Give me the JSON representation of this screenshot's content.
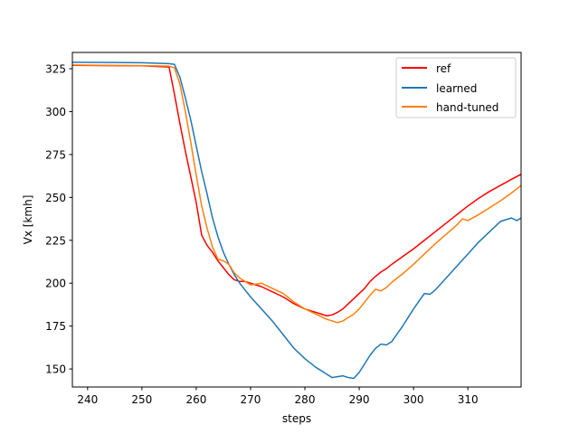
{
  "chart_data": {
    "type": "line",
    "xlabel": "steps",
    "ylabel": "Vx [kmh]",
    "xlim": [
      237.2,
      319.8
    ],
    "ylim": [
      139.5,
      334.5
    ],
    "xticks": [
      240,
      250,
      260,
      270,
      280,
      290,
      300,
      310
    ],
    "yticks": [
      150,
      175,
      200,
      225,
      250,
      275,
      300,
      325
    ],
    "grid": false,
    "legend_position": "top-right",
    "series": [
      {
        "name": "ref",
        "color": "#ff0000",
        "x": [
          237.2,
          250,
          255,
          256,
          257,
          258,
          259,
          260,
          261,
          262,
          263,
          264,
          265,
          266,
          267,
          268,
          269,
          270,
          272,
          274,
          276,
          278,
          280,
          282,
          283,
          284,
          285,
          286,
          287,
          288,
          289,
          290,
          291,
          292,
          293,
          294,
          295,
          296,
          298,
          300,
          302,
          304,
          306,
          308,
          310,
          312,
          314,
          316,
          318,
          319.8
        ],
        "y": [
          327,
          326.7,
          326,
          310,
          293,
          277,
          262,
          247,
          228,
          222,
          218,
          213,
          209,
          205,
          202,
          201,
          201,
          200,
          198,
          195,
          192,
          188,
          185,
          183,
          182,
          181,
          181.5,
          183,
          185,
          188,
          191,
          194,
          197,
          201,
          204,
          206.5,
          208.5,
          211,
          215.5,
          220,
          225,
          230,
          235,
          240,
          245,
          249.5,
          253.5,
          257,
          260.5,
          263.5
        ]
      },
      {
        "name": "learned",
        "color": "#1f77b4",
        "x": [
          237.2,
          250,
          255,
          256,
          257,
          258,
          259,
          260,
          261,
          262,
          263,
          264,
          265,
          266,
          267,
          268,
          269,
          270,
          272,
          274,
          276,
          278,
          280,
          282,
          284,
          285,
          286,
          287,
          288,
          289,
          290,
          291,
          292,
          293,
          294,
          295,
          296,
          298,
          300,
          302,
          303,
          304,
          306,
          308,
          310,
          312,
          314,
          316,
          318,
          319,
          319.8
        ],
        "y": [
          328.8,
          328.5,
          328,
          327.5,
          320,
          308,
          295,
          280,
          265,
          252,
          238,
          227,
          218,
          211,
          205,
          200,
          196,
          192,
          185,
          178,
          170,
          162,
          156,
          151,
          147,
          145,
          145.5,
          146,
          145,
          144.5,
          148,
          153,
          158,
          162,
          164.5,
          164,
          166,
          175,
          185,
          194,
          193.5,
          196,
          203,
          210,
          217,
          224,
          230,
          236,
          238,
          236.5,
          238
        ]
      },
      {
        "name": "hand-tuned",
        "color": "#ff7f0e",
        "x": [
          237.2,
          250,
          255,
          256,
          257,
          258,
          259,
          260,
          261,
          262,
          263,
          264,
          265,
          266,
          267,
          268,
          269,
          270,
          272,
          274,
          276,
          278,
          280,
          282,
          284,
          285,
          286,
          287,
          288,
          289,
          290,
          291,
          292,
          293,
          294,
          295,
          296,
          298,
          300,
          302,
          304,
          306,
          308,
          309,
          310,
          312,
          314,
          316,
          318,
          319.8
        ],
        "y": [
          327.2,
          326.8,
          326.5,
          325.5,
          316,
          300,
          282,
          263,
          245,
          232,
          221,
          214,
          213,
          211,
          206,
          203,
          201,
          199,
          200,
          197,
          194,
          189,
          185,
          182,
          179,
          178,
          177,
          178,
          180,
          182,
          185,
          189,
          193,
          196.5,
          195.5,
          197.5,
          200.5,
          205.5,
          211,
          217,
          223,
          228.5,
          234,
          237.5,
          236.5,
          240,
          244,
          248,
          252.5,
          257
        ]
      }
    ]
  }
}
